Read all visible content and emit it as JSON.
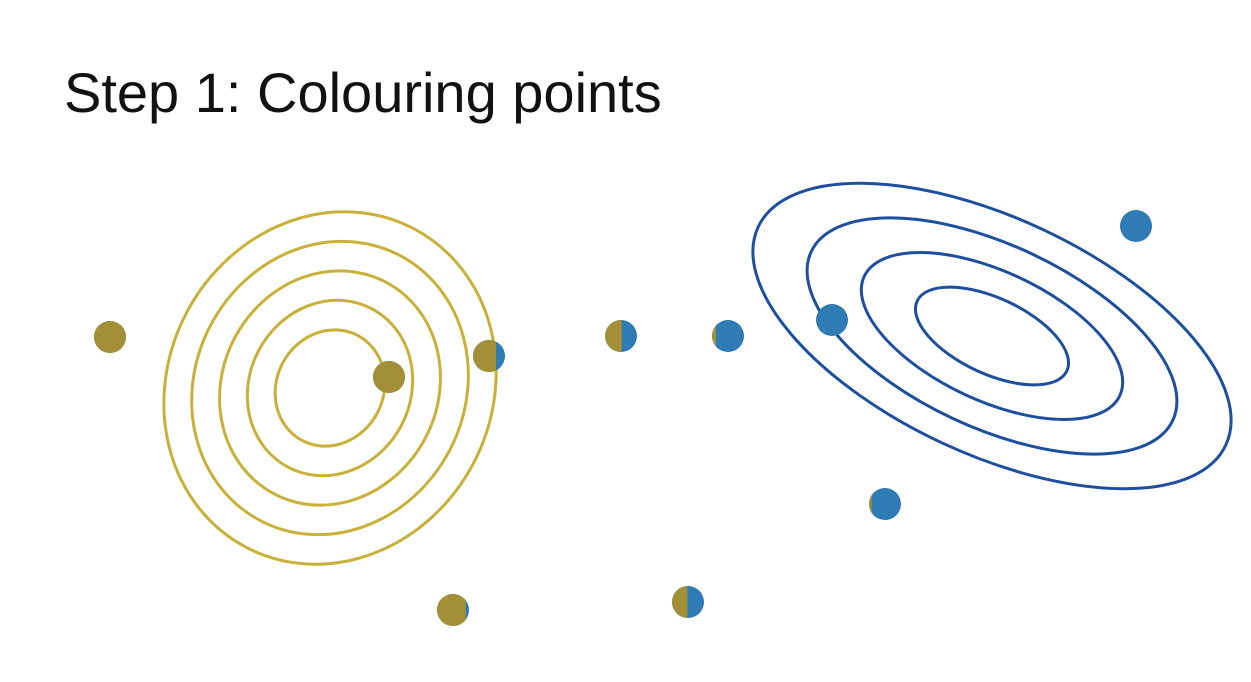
{
  "slide": {
    "title": "Step 1: Colouring points"
  },
  "colors": {
    "cluster_gold": "#c9b038",
    "cluster_blue": "#1e4f9e",
    "point_gold": "#a39036",
    "point_blue": "#2e7cb3",
    "background": "#ffffff"
  },
  "clusters": [
    {
      "name": "gold-cluster",
      "color": "#c9b038",
      "ring_count": 5
    },
    {
      "name": "blue-cluster",
      "color": "#1e4f9e",
      "ring_count": 4
    }
  ],
  "points": [
    {
      "gold_fraction": 1.0
    },
    {
      "gold_fraction": 1.0
    },
    {
      "gold_fraction": 0.72
    },
    {
      "gold_fraction": 0.52
    },
    {
      "gold_fraction": 0.12
    },
    {
      "gold_fraction": 0.0
    },
    {
      "gold_fraction": 0.0
    },
    {
      "gold_fraction": 0.08
    },
    {
      "gold_fraction": 0.9
    },
    {
      "gold_fraction": 0.48
    }
  ]
}
